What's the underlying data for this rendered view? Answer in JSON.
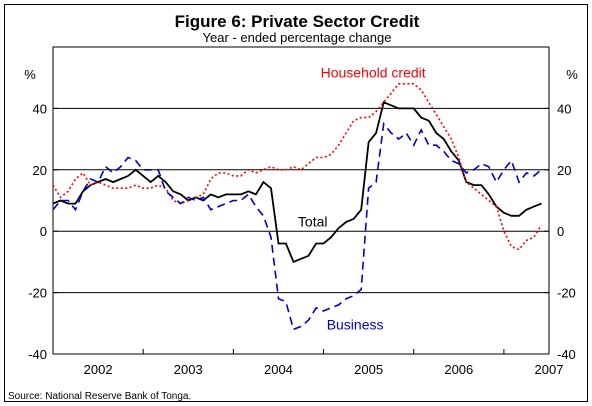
{
  "chart_data": {
    "type": "line",
    "title": "Figure 6: Private Sector Credit",
    "subtitle": "Year - ended percentage change",
    "ylabel_left": "%",
    "ylabel_right": "%",
    "source": "Source: National Reserve Bank of Tonga.",
    "ylim": [
      -40,
      60
    ],
    "y_ticks": [
      -40,
      -20,
      0,
      20,
      40
    ],
    "xlim": [
      2002.0,
      2007.5
    ],
    "x_ticks": [
      "2002",
      "2003",
      "2004",
      "2005",
      "2006",
      "2007"
    ],
    "grid": "horizontal",
    "annotations": [
      {
        "text": "Household credit",
        "series": "household"
      },
      {
        "text": "Total",
        "series": "total"
      },
      {
        "text": "Business",
        "series": "business"
      }
    ],
    "series": [
      {
        "key": "total",
        "name": "Total",
        "color": "#000000",
        "style": "solid",
        "x": [
          2002.0,
          2002.083,
          2002.167,
          2002.25,
          2002.333,
          2002.417,
          2002.5,
          2002.583,
          2002.667,
          2002.75,
          2002.833,
          2002.917,
          2003.0,
          2003.083,
          2003.167,
          2003.25,
          2003.333,
          2003.417,
          2003.5,
          2003.583,
          2003.667,
          2003.75,
          2003.833,
          2003.917,
          2004.0,
          2004.083,
          2004.167,
          2004.25,
          2004.333,
          2004.417,
          2004.5,
          2004.583,
          2004.667,
          2004.75,
          2004.833,
          2004.917,
          2005.0,
          2005.083,
          2005.167,
          2005.25,
          2005.333,
          2005.417,
          2005.5,
          2005.583,
          2005.667,
          2005.75,
          2005.833,
          2005.917,
          2006.0,
          2006.083,
          2006.167,
          2006.25,
          2006.333,
          2006.417,
          2006.5,
          2006.583,
          2006.667,
          2006.75,
          2006.833,
          2006.917,
          2007.0,
          2007.083,
          2007.167,
          2007.25,
          2007.333,
          2007.417
        ],
        "y": [
          9,
          10,
          9,
          9,
          13,
          15,
          16,
          17,
          16,
          17,
          18,
          20,
          18,
          16,
          18,
          16,
          13,
          12,
          10,
          11,
          10,
          12,
          11,
          12,
          12,
          12,
          13,
          12,
          16,
          14,
          -4,
          -4,
          -10,
          -9,
          -8,
          -4,
          -4,
          -2,
          1,
          3,
          4,
          7,
          29,
          32,
          42,
          41,
          40,
          40,
          40,
          37,
          36,
          32,
          30,
          26,
          23,
          16,
          15,
          15,
          12,
          8,
          6,
          5,
          5,
          7,
          8,
          9
        ]
      },
      {
        "key": "household",
        "name": "Household credit",
        "color": "#ff0000",
        "style": "dotted",
        "x": [
          2002.0,
          2002.083,
          2002.167,
          2002.25,
          2002.333,
          2002.417,
          2002.5,
          2002.583,
          2002.667,
          2002.75,
          2002.833,
          2002.917,
          2003.0,
          2003.083,
          2003.167,
          2003.25,
          2003.333,
          2003.417,
          2003.5,
          2003.583,
          2003.667,
          2003.75,
          2003.833,
          2003.917,
          2004.0,
          2004.083,
          2004.167,
          2004.25,
          2004.333,
          2004.417,
          2004.5,
          2004.583,
          2004.667,
          2004.75,
          2004.833,
          2004.917,
          2005.0,
          2005.083,
          2005.167,
          2005.25,
          2005.333,
          2005.417,
          2005.5,
          2005.583,
          2005.667,
          2005.75,
          2005.833,
          2005.917,
          2006.0,
          2006.083,
          2006.167,
          2006.25,
          2006.333,
          2006.417,
          2006.5,
          2006.583,
          2006.667,
          2006.75,
          2006.833,
          2006.917,
          2007.0,
          2007.083,
          2007.167,
          2007.25,
          2007.333,
          2007.417
        ],
        "y": [
          15,
          11,
          13,
          17,
          19,
          15,
          16,
          15,
          14,
          14,
          14,
          15,
          14,
          14,
          15,
          14,
          10,
          9,
          10,
          11,
          12,
          17,
          19,
          19,
          18,
          18,
          20,
          19,
          20,
          21,
          20,
          20,
          21,
          20,
          22,
          24,
          24,
          25,
          28,
          32,
          36,
          37,
          37,
          39,
          42,
          45,
          48,
          48,
          48,
          46,
          42,
          38,
          34,
          30,
          24,
          16,
          14,
          12,
          10,
          8,
          0,
          -5,
          -6,
          -3,
          -2,
          2
        ]
      },
      {
        "key": "business",
        "name": "Business",
        "color": "#0000cc",
        "style": "dashed",
        "x": [
          2002.0,
          2002.083,
          2002.167,
          2002.25,
          2002.333,
          2002.417,
          2002.5,
          2002.583,
          2002.667,
          2002.75,
          2002.833,
          2002.917,
          2003.0,
          2003.083,
          2003.167,
          2003.25,
          2003.333,
          2003.417,
          2003.5,
          2003.583,
          2003.667,
          2003.75,
          2003.833,
          2003.917,
          2004.0,
          2004.083,
          2004.167,
          2004.25,
          2004.333,
          2004.417,
          2004.5,
          2004.583,
          2004.667,
          2004.75,
          2004.833,
          2004.917,
          2005.0,
          2005.083,
          2005.167,
          2005.25,
          2005.333,
          2005.417,
          2005.5,
          2005.583,
          2005.667,
          2005.75,
          2005.833,
          2005.917,
          2006.0,
          2006.083,
          2006.167,
          2006.25,
          2006.333,
          2006.417,
          2006.5,
          2006.583,
          2006.667,
          2006.75,
          2006.833,
          2006.917,
          2007.0,
          2007.083,
          2007.167,
          2007.25,
          2007.333,
          2007.417
        ],
        "y": [
          7,
          10,
          10,
          7,
          13,
          17,
          16,
          21,
          19,
          21,
          24,
          23,
          20,
          20,
          20,
          13,
          11,
          9,
          11,
          10,
          11,
          7,
          8,
          9,
          10,
          10,
          12,
          8,
          5,
          -2,
          -22,
          -23,
          -32,
          -31,
          -29,
          -25,
          -26,
          -25,
          -24,
          -22,
          -21,
          -19,
          14,
          16,
          35,
          32,
          30,
          32,
          28,
          33,
          28,
          28,
          26,
          23,
          22,
          19,
          20,
          22,
          21,
          16,
          20,
          23,
          16,
          19,
          18,
          20
        ]
      }
    ]
  }
}
